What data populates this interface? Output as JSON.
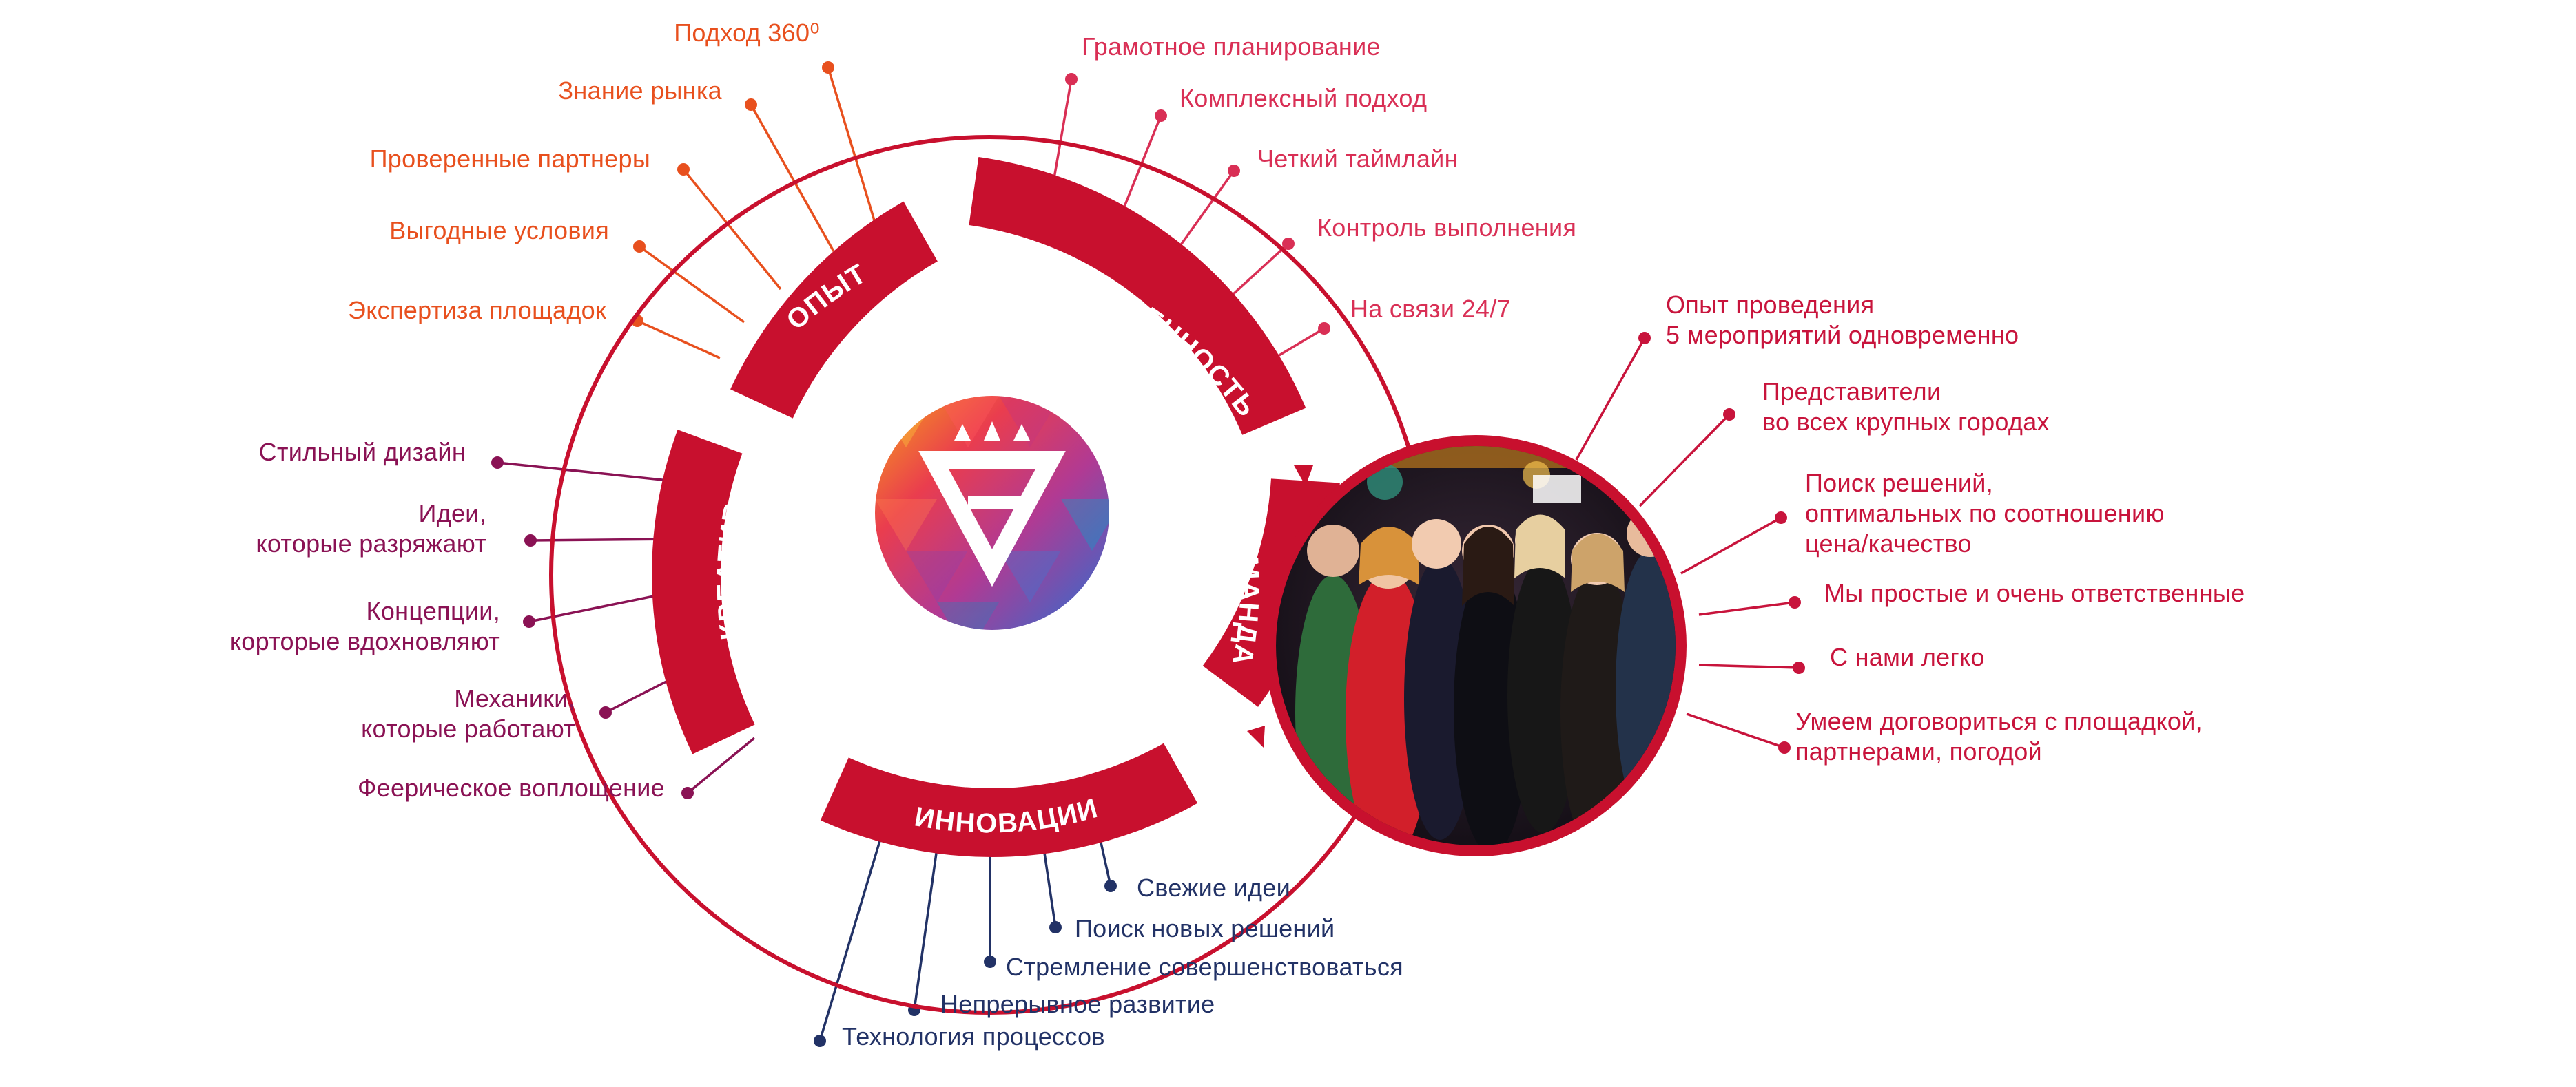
{
  "colors": {
    "main_red": "#c8102e",
    "orange": "#e8501e",
    "pink_red": "#d92f55",
    "crimson": "#c8143c",
    "purple": "#8a1254",
    "navy": "#223266"
  },
  "segments": {
    "opyt": "ОПЫТ",
    "otvetstvennost": "ОТВЕТСТВЕННОСТЬ",
    "komanda": "КОМАНДА",
    "innovacii": "ИННОВАЦИИ",
    "kreativ": "КРЕАТИВ"
  },
  "center_logo_icon": "triangle-e-logo-icon",
  "photo_icon": "team-photo-image",
  "groups": {
    "experience": [
      {
        "lines": [
          "Подход 360⁰"
        ]
      },
      {
        "lines": [
          "Знание рынка"
        ]
      },
      {
        "lines": [
          "Проверенные партнеры"
        ]
      },
      {
        "lines": [
          "Выгодные условия"
        ]
      },
      {
        "lines": [
          "Экспертиза площадок"
        ]
      }
    ],
    "responsibility": [
      {
        "lines": [
          "Грамотное планирование"
        ]
      },
      {
        "lines": [
          "Комплексный подход"
        ]
      },
      {
        "lines": [
          "Четкий таймлайн"
        ]
      },
      {
        "lines": [
          "Контроль выполнения"
        ]
      },
      {
        "lines": [
          "На связи 24/7"
        ]
      }
    ],
    "team": [
      {
        "lines": [
          "Опыт проведения",
          "5 мероприятий одновременно"
        ]
      },
      {
        "lines": [
          "Представители",
          "во всех крупных городах"
        ]
      },
      {
        "lines": [
          "Поиск решений,",
          "оптимальных по соотношению",
          "цена/качество"
        ]
      },
      {
        "lines": [
          "Мы простые и очень ответственные"
        ]
      },
      {
        "lines": [
          "С нами легко"
        ]
      },
      {
        "lines": [
          "Умеем договориться с площадкой,",
          "партнерами, погодой"
        ]
      }
    ],
    "creative": [
      {
        "lines": [
          "Стильный дизайн"
        ]
      },
      {
        "lines": [
          "Идеи,",
          "которые разряжают"
        ]
      },
      {
        "lines": [
          "Концепции,",
          "корторые вдохновляют"
        ]
      },
      {
        "lines": [
          "Механики,",
          "которые работают"
        ]
      },
      {
        "lines": [
          "Феерическое воплощение"
        ]
      }
    ],
    "innovation": [
      {
        "lines": [
          "Свежие идеи"
        ]
      },
      {
        "lines": [
          "Поиск новых решений"
        ]
      },
      {
        "lines": [
          "Стремление совершенствоваться"
        ]
      },
      {
        "lines": [
          "Непрерывное развитие"
        ]
      },
      {
        "lines": [
          "Технология процессов"
        ]
      }
    ]
  }
}
